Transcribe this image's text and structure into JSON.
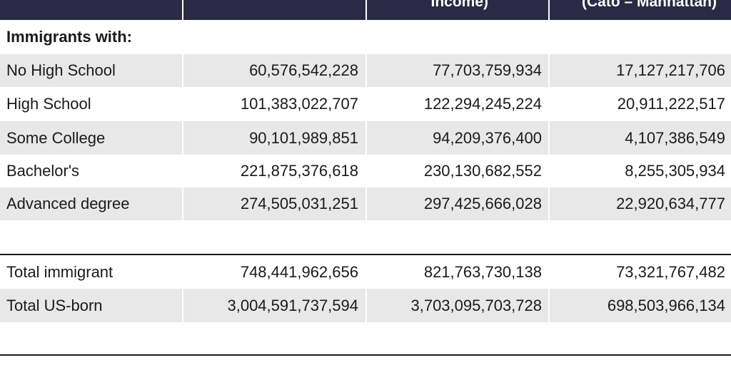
{
  "header": {
    "col1": "",
    "col2": "Income)",
    "col3": "(Cato – Manhattan)"
  },
  "section_label": "Immigrants with:",
  "rows": [
    {
      "label": "No High School",
      "v1": "60,576,542,228",
      "v2": "77,703,759,934",
      "v3": "17,127,217,706"
    },
    {
      "label": "High School",
      "v1": "101,383,022,707",
      "v2": "122,294,245,224",
      "v3": "20,911,222,517"
    },
    {
      "label": "Some College",
      "v1": "90,101,989,851",
      "v2": "94,209,376,400",
      "v3": "4,107,386,549"
    },
    {
      "label": "Bachelor's",
      "v1": "221,875,376,618",
      "v2": "230,130,682,552",
      "v3": "8,255,305,934"
    },
    {
      "label": "Advanced degree",
      "v1": "274,505,031,251",
      "v2": "297,425,666,028",
      "v3": "22,920,634,777"
    }
  ],
  "totals": [
    {
      "label": "Total immigrant",
      "v1": "748,441,962,656",
      "v2": "821,763,730,138",
      "v3": "73,321,767,482"
    },
    {
      "label": "Total US-born",
      "v1": "3,004,591,737,594",
      "v2": "3,703,095,703,728",
      "v3": "698,503,966,134"
    }
  ],
  "colors": {
    "header_bg": "#2a2a45",
    "stripe": "#e8e8e8",
    "rule": "#1a1a1a"
  }
}
